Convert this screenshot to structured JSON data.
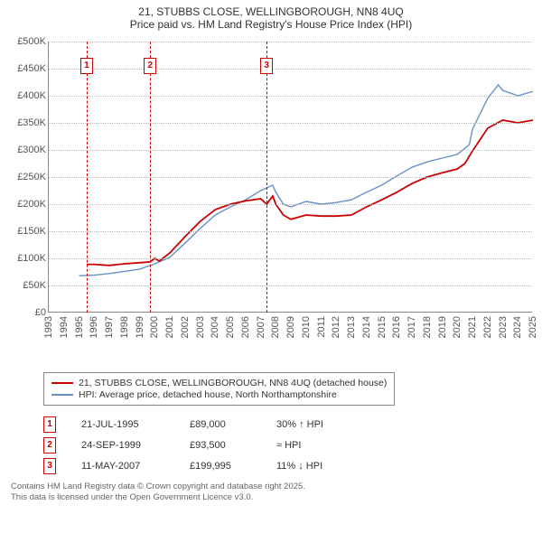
{
  "title": {
    "line1": "21, STUBBS CLOSE, WELLINGBOROUGH, NN8 4UQ",
    "line2": "Price paid vs. HM Land Registry's House Price Index (HPI)"
  },
  "chart": {
    "type": "line",
    "background_color": "#ffffff",
    "grid_color": "#bbbbbb",
    "ylim": [
      0,
      500000
    ],
    "ytick_step": 50000,
    "y_labels": [
      "£0",
      "£50K",
      "£100K",
      "£150K",
      "£200K",
      "£250K",
      "£300K",
      "£350K",
      "£400K",
      "£450K",
      "£500K"
    ],
    "x_years": [
      1993,
      1994,
      1995,
      1996,
      1997,
      1998,
      1999,
      2000,
      2001,
      2002,
      2003,
      2004,
      2005,
      2006,
      2007,
      2008,
      2009,
      2010,
      2011,
      2012,
      2013,
      2014,
      2015,
      2016,
      2017,
      2018,
      2019,
      2020,
      2021,
      2022,
      2023,
      2024,
      2025
    ],
    "series": [
      {
        "name": "price_paid",
        "color": "#cc0000",
        "line_width": 1.8,
        "label": "21, STUBBS CLOSE, WELLINGBOROUGH, NN8 4UQ (detached house)",
        "data": [
          [
            1995.5,
            89000
          ],
          [
            1996,
            89000
          ],
          [
            1997,
            87000
          ],
          [
            1998,
            90000
          ],
          [
            1999,
            92000
          ],
          [
            1999.7,
            93500
          ],
          [
            2000,
            100000
          ],
          [
            2000.3,
            95000
          ],
          [
            2001,
            110000
          ],
          [
            2002,
            140000
          ],
          [
            2003,
            168000
          ],
          [
            2004,
            190000
          ],
          [
            2005,
            200000
          ],
          [
            2006,
            206000
          ],
          [
            2007,
            210000
          ],
          [
            2007.4,
            199995
          ],
          [
            2007.8,
            215000
          ],
          [
            2008,
            200000
          ],
          [
            2008.5,
            180000
          ],
          [
            2009,
            172000
          ],
          [
            2010,
            180000
          ],
          [
            2011,
            178000
          ],
          [
            2012,
            178000
          ],
          [
            2013,
            180000
          ],
          [
            2014,
            195000
          ],
          [
            2015,
            208000
          ],
          [
            2016,
            222000
          ],
          [
            2017,
            238000
          ],
          [
            2018,
            250000
          ],
          [
            2019,
            258000
          ],
          [
            2020,
            265000
          ],
          [
            2020.5,
            275000
          ],
          [
            2021,
            298000
          ],
          [
            2022,
            340000
          ],
          [
            2023,
            355000
          ],
          [
            2024,
            350000
          ],
          [
            2025,
            355000
          ]
        ]
      },
      {
        "name": "hpi",
        "color": "#6a8fc5",
        "line_width": 1.4,
        "label": "HPI: Average price, detached house, North Northamptonshire",
        "data": [
          [
            1995,
            68000
          ],
          [
            1996,
            69000
          ],
          [
            1997,
            72000
          ],
          [
            1998,
            76000
          ],
          [
            1999,
            80000
          ],
          [
            2000,
            90000
          ],
          [
            2001,
            102000
          ],
          [
            2002,
            128000
          ],
          [
            2003,
            155000
          ],
          [
            2004,
            180000
          ],
          [
            2005,
            195000
          ],
          [
            2006,
            208000
          ],
          [
            2007,
            225000
          ],
          [
            2007.8,
            235000
          ],
          [
            2008,
            222000
          ],
          [
            2008.5,
            200000
          ],
          [
            2009,
            195000
          ],
          [
            2010,
            205000
          ],
          [
            2011,
            200000
          ],
          [
            2012,
            203000
          ],
          [
            2013,
            208000
          ],
          [
            2014,
            222000
          ],
          [
            2015,
            235000
          ],
          [
            2016,
            252000
          ],
          [
            2017,
            268000
          ],
          [
            2018,
            278000
          ],
          [
            2019,
            285000
          ],
          [
            2020,
            292000
          ],
          [
            2020.8,
            310000
          ],
          [
            2021,
            338000
          ],
          [
            2022,
            395000
          ],
          [
            2022.7,
            420000
          ],
          [
            2023,
            410000
          ],
          [
            2024,
            400000
          ],
          [
            2025,
            408000
          ]
        ]
      }
    ],
    "markers": [
      {
        "num": "1",
        "x": 1995.5,
        "y": 455000
      },
      {
        "num": "2",
        "x": 1999.7,
        "y": 455000
      },
      {
        "num": "3",
        "x": 2007.4,
        "y": 455000
      }
    ]
  },
  "legend": [
    {
      "color": "#cc0000",
      "label": "21, STUBBS CLOSE, WELLINGBOROUGH, NN8 4UQ (detached house)"
    },
    {
      "color": "#6a8fc5",
      "label": "HPI: Average price, detached house, North Northamptonshire"
    }
  ],
  "events": [
    {
      "num": "1",
      "date": "21-JUL-1995",
      "price": "£89,000",
      "hpi": "30% ↑ HPI"
    },
    {
      "num": "2",
      "date": "24-SEP-1999",
      "price": "£93,500",
      "hpi": "≈ HPI"
    },
    {
      "num": "3",
      "date": "11-MAY-2007",
      "price": "£199,995",
      "hpi": "11% ↓ HPI"
    }
  ],
  "disclaimer": {
    "line1": "Contains HM Land Registry data © Crown copyright and database right 2025.",
    "line2": "This data is licensed under the Open Government Licence v3.0."
  }
}
